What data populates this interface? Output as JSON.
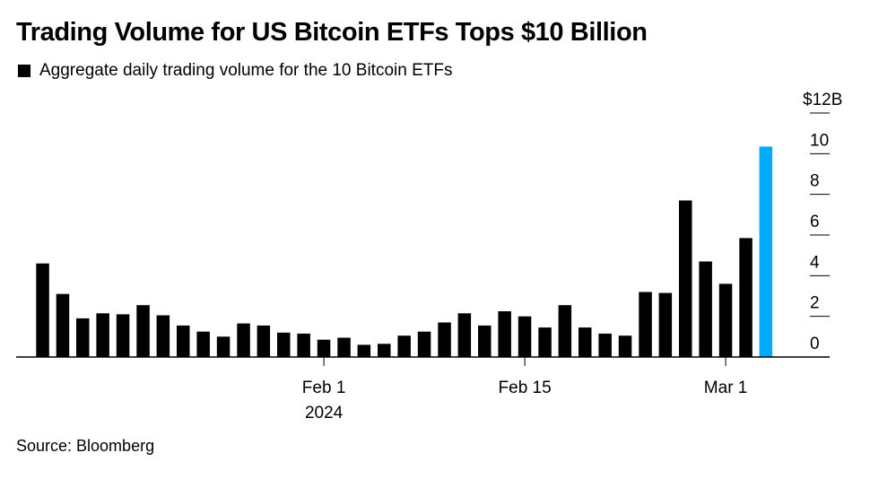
{
  "title": "Trading Volume for US Bitcoin ETFs Tops $10 Billion",
  "source": "Source: Bloomberg",
  "colors": {
    "bar": "#000000",
    "highlight": "#00aaff"
  },
  "chart_data": {
    "type": "bar",
    "title": "Trading Volume for US Bitcoin ETFs Tops $10 Billion",
    "legend": [
      "Aggregate daily trading volume for the 10 Bitcoin ETFs"
    ],
    "categories": [
      "2024-01-11",
      "2024-01-12",
      "2024-01-16",
      "2024-01-17",
      "2024-01-18",
      "2024-01-19",
      "2024-01-22",
      "2024-01-23",
      "2024-01-24",
      "2024-01-25",
      "2024-01-26",
      "2024-01-29",
      "2024-01-30",
      "2024-01-31",
      "2024-02-01",
      "2024-02-02",
      "2024-02-05",
      "2024-02-06",
      "2024-02-07",
      "2024-02-08",
      "2024-02-09",
      "2024-02-12",
      "2024-02-13",
      "2024-02-14",
      "2024-02-15",
      "2024-02-16",
      "2024-02-20",
      "2024-02-21",
      "2024-02-22",
      "2024-02-23",
      "2024-02-26",
      "2024-02-27",
      "2024-02-28",
      "2024-02-29",
      "2024-03-01",
      "2024-03-04",
      "2024-03-05"
    ],
    "values": [
      4.6,
      3.1,
      1.9,
      2.15,
      2.1,
      2.55,
      2.05,
      1.55,
      1.25,
      1.0,
      1.65,
      1.55,
      1.2,
      1.15,
      0.85,
      0.95,
      0.6,
      0.65,
      1.05,
      1.25,
      1.7,
      2.15,
      1.55,
      2.25,
      2.0,
      1.45,
      2.55,
      1.45,
      1.15,
      1.05,
      3.2,
      3.15,
      7.7,
      4.7,
      3.6,
      5.85,
      10.35
    ],
    "highlight_index": 36,
    "x_ticks": [
      {
        "date": "2024-02-01",
        "label": "Feb 1",
        "sublabel": "2024"
      },
      {
        "date": "2024-02-15",
        "label": "Feb 15",
        "sublabel": ""
      },
      {
        "date": "2024-03-01",
        "label": "Mar 1",
        "sublabel": ""
      }
    ],
    "y_ticks": [
      {
        "value": 0,
        "label": "0"
      },
      {
        "value": 2,
        "label": "2"
      },
      {
        "value": 4,
        "label": "4"
      },
      {
        "value": 6,
        "label": "6"
      },
      {
        "value": 8,
        "label": "8"
      },
      {
        "value": 10,
        "label": "10"
      },
      {
        "value": 12,
        "label": "$12B"
      }
    ],
    "ylim": [
      0,
      12
    ],
    "xlabel": "",
    "ylabel": ""
  }
}
